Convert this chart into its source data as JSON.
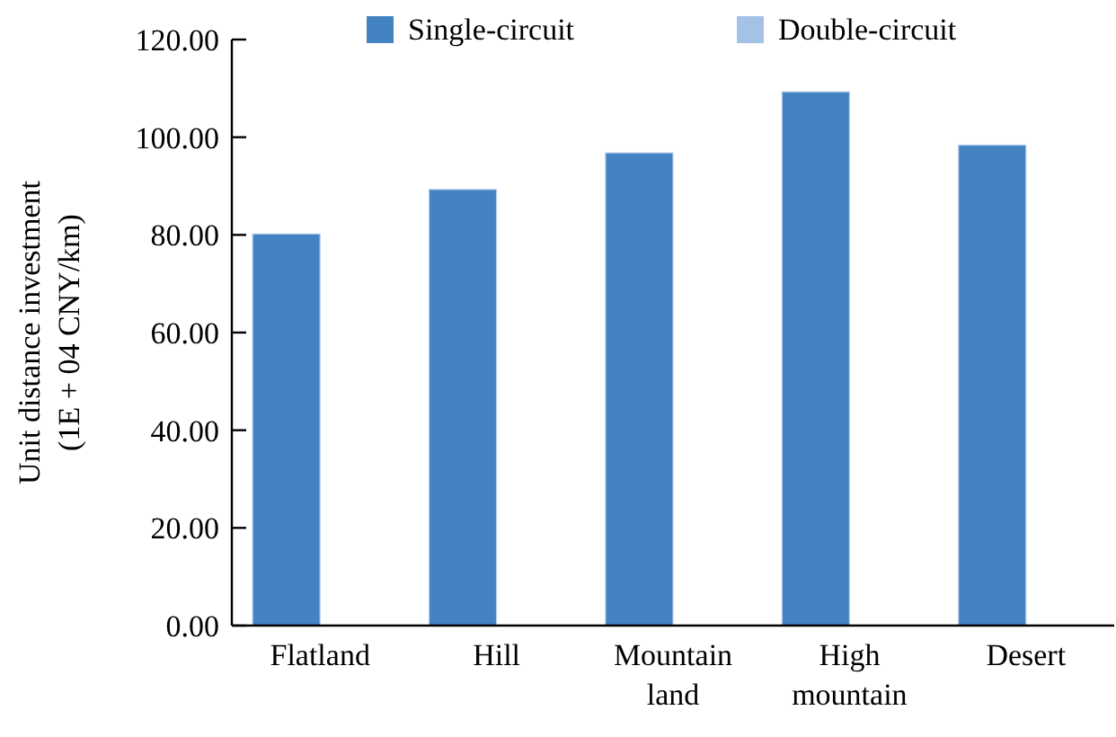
{
  "chart_data": {
    "type": "bar",
    "ylabel": "Unit distance investment\n(1E + 04 CNY/km)",
    "categories": [
      "Flatland",
      "Hill",
      "Mountain land",
      "High mountain",
      "Desert"
    ],
    "series": [
      {
        "name": "Single-circuit",
        "color": "#4483c2",
        "values": [
          80.2,
          89.3,
          96.8,
          109.3,
          98.4
        ]
      },
      {
        "name": "Double-circuit",
        "color": "#a4c2e8",
        "values": [
          null,
          null,
          null,
          null,
          null
        ]
      }
    ],
    "ylim": [
      0,
      120
    ],
    "yticks": [
      {
        "value": 0,
        "label": "0.00"
      },
      {
        "value": 20,
        "label": "20.00"
      },
      {
        "value": 40,
        "label": "40.00"
      },
      {
        "value": 60,
        "label": "60.00"
      },
      {
        "value": 80,
        "label": "80.00"
      },
      {
        "value": 100,
        "label": "100.00"
      },
      {
        "value": 120,
        "label": "120.00"
      }
    ],
    "legend": "top",
    "grid": false
  }
}
